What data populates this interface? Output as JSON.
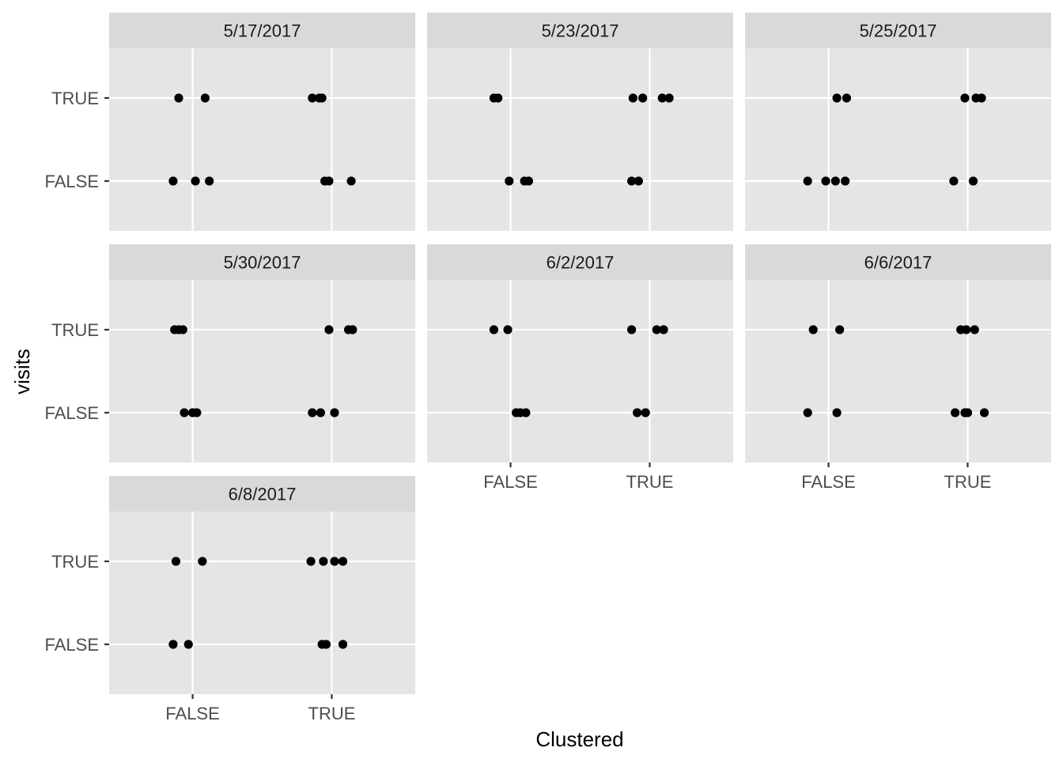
{
  "chart_data": {
    "type": "scatter",
    "xlabel": "Clustered",
    "ylabel": "visits",
    "x_categories": [
      "FALSE",
      "TRUE"
    ],
    "y_categories": [
      "FALSE",
      "TRUE"
    ],
    "grid": true,
    "jitter": "horizontal",
    "facets": [
      {
        "label": "5/17/2017",
        "points": [
          {
            "x": 0.9,
            "y": "TRUE"
          },
          {
            "x": 1.09,
            "y": "TRUE"
          },
          {
            "x": 1.86,
            "y": "TRUE"
          },
          {
            "x": 1.91,
            "y": "TRUE"
          },
          {
            "x": 1.93,
            "y": "TRUE"
          },
          {
            "x": 0.86,
            "y": "FALSE"
          },
          {
            "x": 1.02,
            "y": "FALSE"
          },
          {
            "x": 1.12,
            "y": "FALSE"
          },
          {
            "x": 1.95,
            "y": "FALSE"
          },
          {
            "x": 1.98,
            "y": "FALSE"
          },
          {
            "x": 2.14,
            "y": "FALSE"
          }
        ]
      },
      {
        "label": "5/23/2017",
        "points": [
          {
            "x": 0.88,
            "y": "TRUE"
          },
          {
            "x": 0.91,
            "y": "TRUE"
          },
          {
            "x": 1.88,
            "y": "TRUE"
          },
          {
            "x": 1.95,
            "y": "TRUE"
          },
          {
            "x": 2.09,
            "y": "TRUE"
          },
          {
            "x": 2.14,
            "y": "TRUE"
          },
          {
            "x": 0.99,
            "y": "FALSE"
          },
          {
            "x": 1.1,
            "y": "FALSE"
          },
          {
            "x": 1.13,
            "y": "FALSE"
          },
          {
            "x": 1.87,
            "y": "FALSE"
          },
          {
            "x": 1.92,
            "y": "FALSE"
          }
        ]
      },
      {
        "label": "5/25/2017",
        "points": [
          {
            "x": 1.06,
            "y": "TRUE"
          },
          {
            "x": 1.13,
            "y": "TRUE"
          },
          {
            "x": 1.98,
            "y": "TRUE"
          },
          {
            "x": 2.06,
            "y": "TRUE"
          },
          {
            "x": 2.1,
            "y": "TRUE"
          },
          {
            "x": 0.85,
            "y": "FALSE"
          },
          {
            "x": 0.98,
            "y": "FALSE"
          },
          {
            "x": 1.05,
            "y": "FALSE"
          },
          {
            "x": 1.12,
            "y": "FALSE"
          },
          {
            "x": 1.9,
            "y": "FALSE"
          },
          {
            "x": 2.04,
            "y": "FALSE"
          }
        ]
      },
      {
        "label": "5/30/2017",
        "points": [
          {
            "x": 0.87,
            "y": "TRUE"
          },
          {
            "x": 0.9,
            "y": "TRUE"
          },
          {
            "x": 0.93,
            "y": "TRUE"
          },
          {
            "x": 1.98,
            "y": "TRUE"
          },
          {
            "x": 2.12,
            "y": "TRUE"
          },
          {
            "x": 2.15,
            "y": "TRUE"
          },
          {
            "x": 0.94,
            "y": "FALSE"
          },
          {
            "x": 1.0,
            "y": "FALSE"
          },
          {
            "x": 1.03,
            "y": "FALSE"
          },
          {
            "x": 1.86,
            "y": "FALSE"
          },
          {
            "x": 1.92,
            "y": "FALSE"
          },
          {
            "x": 2.02,
            "y": "FALSE"
          }
        ]
      },
      {
        "label": "6/2/2017",
        "points": [
          {
            "x": 0.88,
            "y": "TRUE"
          },
          {
            "x": 0.98,
            "y": "TRUE"
          },
          {
            "x": 1.87,
            "y": "TRUE"
          },
          {
            "x": 2.05,
            "y": "TRUE"
          },
          {
            "x": 2.1,
            "y": "TRUE"
          },
          {
            "x": 1.04,
            "y": "FALSE"
          },
          {
            "x": 1.07,
            "y": "FALSE"
          },
          {
            "x": 1.11,
            "y": "FALSE"
          },
          {
            "x": 1.91,
            "y": "FALSE"
          },
          {
            "x": 1.97,
            "y": "FALSE"
          }
        ]
      },
      {
        "label": "6/6/2017",
        "points": [
          {
            "x": 0.89,
            "y": "TRUE"
          },
          {
            "x": 1.08,
            "y": "TRUE"
          },
          {
            "x": 1.95,
            "y": "TRUE"
          },
          {
            "x": 1.99,
            "y": "TRUE"
          },
          {
            "x": 2.05,
            "y": "TRUE"
          },
          {
            "x": 0.85,
            "y": "FALSE"
          },
          {
            "x": 1.06,
            "y": "FALSE"
          },
          {
            "x": 1.91,
            "y": "FALSE"
          },
          {
            "x": 1.98,
            "y": "FALSE"
          },
          {
            "x": 2.0,
            "y": "FALSE"
          },
          {
            "x": 2.12,
            "y": "FALSE"
          }
        ]
      },
      {
        "label": "6/8/2017",
        "points": [
          {
            "x": 0.88,
            "y": "TRUE"
          },
          {
            "x": 1.07,
            "y": "TRUE"
          },
          {
            "x": 1.85,
            "y": "TRUE"
          },
          {
            "x": 1.94,
            "y": "TRUE"
          },
          {
            "x": 2.02,
            "y": "TRUE"
          },
          {
            "x": 2.08,
            "y": "TRUE"
          },
          {
            "x": 0.86,
            "y": "FALSE"
          },
          {
            "x": 0.97,
            "y": "FALSE"
          },
          {
            "x": 1.93,
            "y": "FALSE"
          },
          {
            "x": 1.96,
            "y": "FALSE"
          },
          {
            "x": 2.08,
            "y": "FALSE"
          }
        ]
      }
    ]
  }
}
